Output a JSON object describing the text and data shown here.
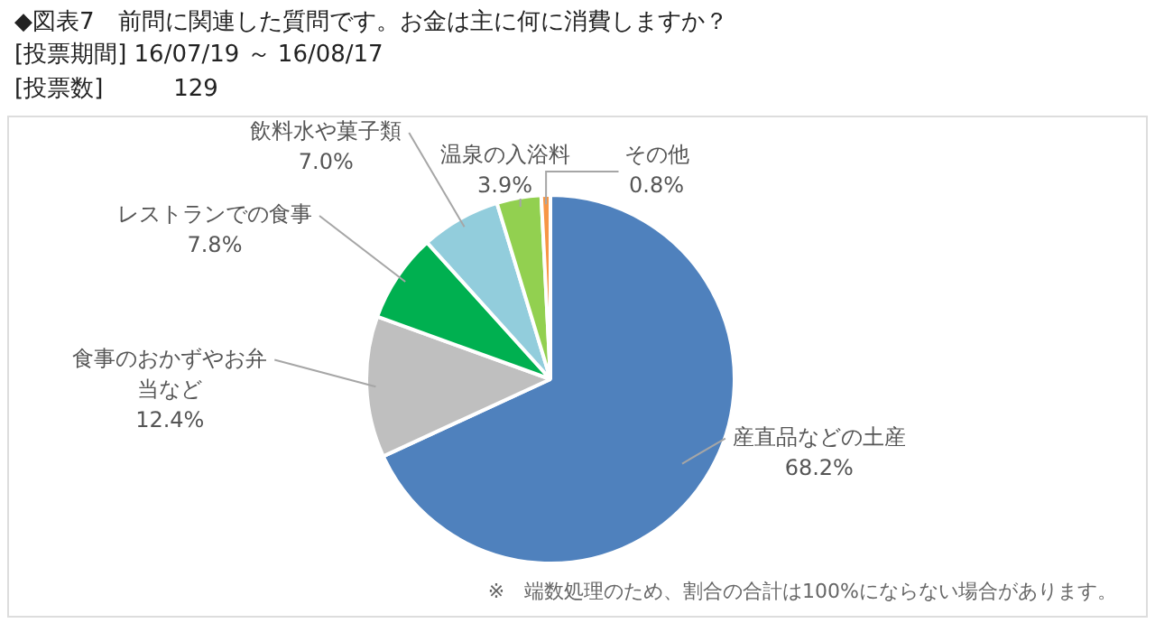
{
  "chart_data": {
    "type": "pie",
    "title": "◆図表7　前問に関連した質問です。お金は主に何に消費しますか？",
    "subtitle": "[投票期間] 16/07/19 ～ 16/08/17\n[投票数]　　　129",
    "categories": [
      "産直品などの土産",
      "食事のおかずやお弁当など",
      "レストランでの食事",
      "飲料水や菓子類",
      "温泉の入浴料",
      "その他"
    ],
    "values": [
      68.2,
      12.4,
      7.8,
      7.0,
      3.9,
      0.8
    ],
    "value_labels": [
      "68.2%",
      "12.4%",
      "7.8%",
      "7.0%",
      "3.9%",
      "0.8%"
    ],
    "colors": [
      "#4f81bd",
      "#bfbfbf",
      "#00b050",
      "#92cddc",
      "#92d050",
      "#f79646"
    ],
    "annotations": [
      "※　端数処理のため、割合の合計は100%にならない場合があります。"
    ]
  }
}
